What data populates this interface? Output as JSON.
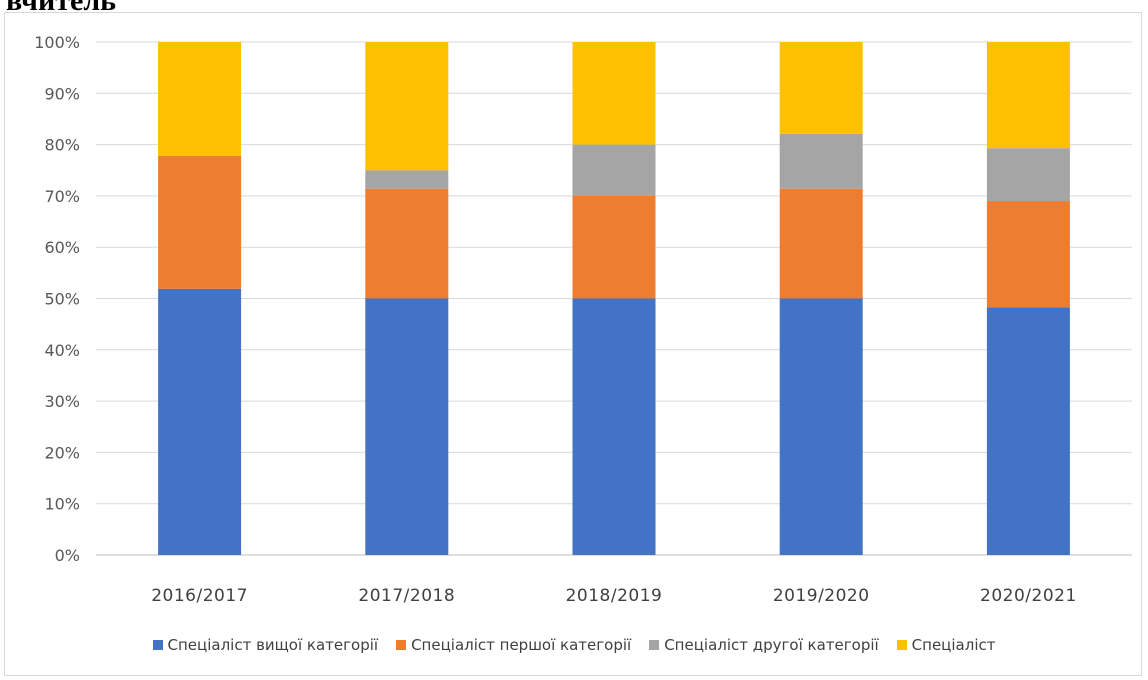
{
  "page": {
    "heading": "вчитель"
  },
  "chart_data": {
    "type": "bar",
    "stacked": true,
    "percent": true,
    "categories": [
      "2016/2017",
      "2017/2018",
      "2018/2019",
      "2019/2020",
      "2020/2021"
    ],
    "series": [
      {
        "name": "Спеціаліст вищої категорії",
        "color": "#4472C4",
        "values": [
          51.9,
          50.0,
          50.0,
          50.0,
          48.3
        ]
      },
      {
        "name": "Спеціаліст першої категорії",
        "color": "#ED7D31",
        "values": [
          25.9,
          21.4,
          20.0,
          21.4,
          20.7
        ]
      },
      {
        "name": "Спеціаліст другої категорії",
        "color": "#A5A5A5",
        "values": [
          0.0,
          3.6,
          10.0,
          10.7,
          10.3
        ]
      },
      {
        "name": "Спеціаліст",
        "color": "#FFC000",
        "values": [
          22.2,
          25.0,
          20.0,
          17.9,
          20.7
        ]
      }
    ],
    "yticks": [
      "0%",
      "10%",
      "20%",
      "30%",
      "40%",
      "50%",
      "60%",
      "70%",
      "80%",
      "90%",
      "100%"
    ],
    "ylim": [
      0,
      100
    ],
    "grid": true,
    "legend": "bottom"
  }
}
